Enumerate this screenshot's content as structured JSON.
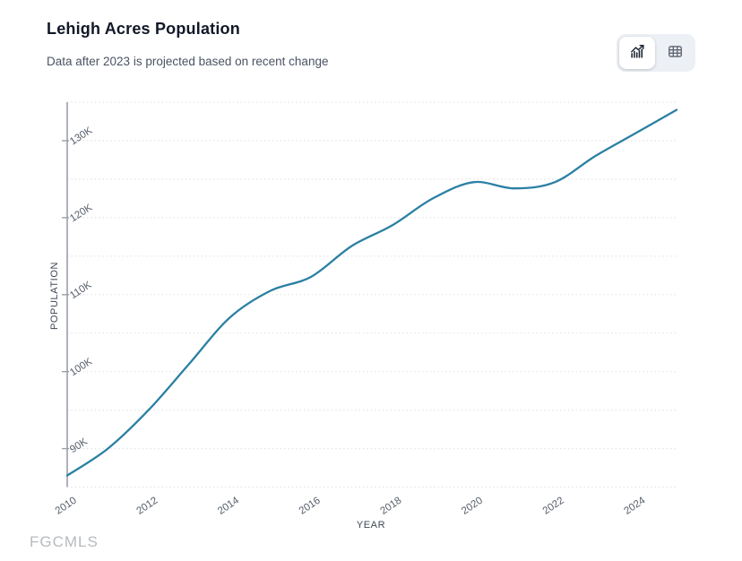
{
  "header": {
    "title": "Lehigh Acres Population",
    "subtitle": "Data after 2023 is projected based on recent change"
  },
  "toolbar": {
    "views": [
      {
        "name": "chart-view",
        "icon": "bar-chart-icon",
        "active": true
      },
      {
        "name": "table-view",
        "icon": "table-icon",
        "active": false
      }
    ]
  },
  "watermark": "FGCMLS",
  "colors": {
    "line": "#2b80a3",
    "axis": "#9aa0a8",
    "tick_text": "#565e6a",
    "axis_title_text": "#3f4754",
    "grid": "#e5e2e4",
    "title_text": "#111827",
    "subtitle_text": "#4a5362",
    "active_icon": "#1b2430",
    "inactive_icon": "#5e6673"
  },
  "chart_data": {
    "type": "line",
    "title": "Lehigh Acres Population",
    "annotation": "Data after 2023 is projected based on recent change",
    "xlabel": "YEAR",
    "ylabel": "POPULATION",
    "x": [
      2010,
      2011,
      2012,
      2013,
      2014,
      2015,
      2016,
      2017,
      2018,
      2019,
      2020,
      2021,
      2022,
      2023,
      2024,
      2025
    ],
    "values": [
      86500,
      90000,
      95000,
      101000,
      107000,
      110500,
      112300,
      116300,
      119000,
      122500,
      124600,
      123800,
      124600,
      128000,
      131000,
      134000
    ],
    "projected_after_year": 2023,
    "xlim": [
      2010,
      2025
    ],
    "ylim": [
      85000,
      135000
    ],
    "x_ticks": [
      2010,
      2012,
      2014,
      2016,
      2018,
      2020,
      2022,
      2024
    ],
    "x_tick_labels": [
      "2010",
      "2012",
      "2014",
      "2016",
      "2018",
      "2020",
      "2022",
      "2024"
    ],
    "y_ticks": [
      90000,
      100000,
      110000,
      120000,
      130000
    ],
    "y_tick_labels": [
      "90K",
      "100K",
      "110K",
      "120K",
      "130K"
    ],
    "grid": "horizontal dotted, every 5000",
    "grid_step": 5000,
    "legend": "none",
    "line_color": "#2b80a3"
  }
}
